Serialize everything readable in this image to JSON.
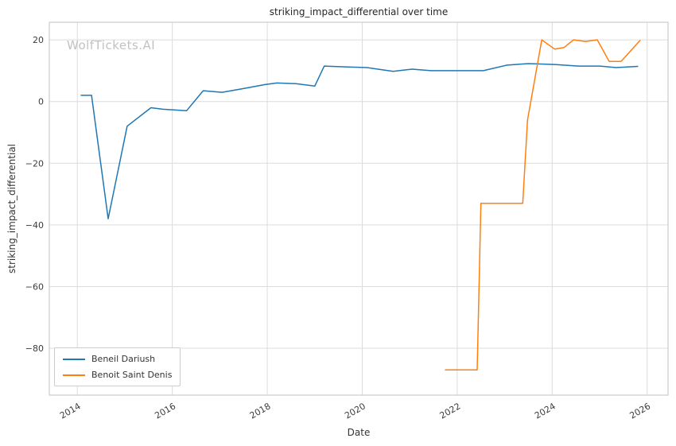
{
  "watermark": "WolfTickets.AI",
  "chart_data": {
    "type": "line",
    "title": "striking_impact_differential over time",
    "xlabel": "Date",
    "ylabel": "striking_impact_differential",
    "xlim": [
      2013.41,
      2026.44
    ],
    "ylim": [
      -95.2,
      25.7
    ],
    "grid": true,
    "legend_position": "lower left",
    "x_ticks": [
      {
        "v": 2014,
        "label": "2014"
      },
      {
        "v": 2016,
        "label": "2016"
      },
      {
        "v": 2018,
        "label": "2018"
      },
      {
        "v": 2020,
        "label": "2020"
      },
      {
        "v": 2022,
        "label": "2022"
      },
      {
        "v": 2024,
        "label": "2024"
      },
      {
        "v": 2026,
        "label": "2026"
      }
    ],
    "y_ticks": [
      {
        "v": 20,
        "label": "20"
      },
      {
        "v": 0,
        "label": "0"
      },
      {
        "v": -20,
        "label": "−20"
      },
      {
        "v": -40,
        "label": "−40"
      },
      {
        "v": -60,
        "label": "−60"
      },
      {
        "v": -80,
        "label": "−80"
      }
    ],
    "series": [
      {
        "name": "Beneil Dariush",
        "color": "#1f77b4",
        "points": [
          [
            2014.08,
            2
          ],
          [
            2014.3,
            2
          ],
          [
            2014.65,
            -38
          ],
          [
            2015.05,
            -8
          ],
          [
            2015.55,
            -2
          ],
          [
            2015.8,
            -2.5
          ],
          [
            2016.3,
            -3
          ],
          [
            2016.65,
            3.5
          ],
          [
            2017.05,
            3
          ],
          [
            2017.5,
            4.2
          ],
          [
            2017.95,
            5.5
          ],
          [
            2018.2,
            6
          ],
          [
            2018.6,
            5.8
          ],
          [
            2019.0,
            5
          ],
          [
            2019.2,
            11.5
          ],
          [
            2019.7,
            11.2
          ],
          [
            2020.1,
            11
          ],
          [
            2020.65,
            9.8
          ],
          [
            2021.05,
            10.5
          ],
          [
            2021.45,
            10
          ],
          [
            2021.95,
            10
          ],
          [
            2022.55,
            10
          ],
          [
            2023.05,
            11.8
          ],
          [
            2023.5,
            12.3
          ],
          [
            2024.05,
            12
          ],
          [
            2024.55,
            11.5
          ],
          [
            2025.0,
            11.5
          ],
          [
            2025.35,
            11
          ],
          [
            2025.8,
            11.4
          ]
        ]
      },
      {
        "name": "Benoit Saint Denis",
        "color": "#ff7f0e",
        "points": [
          [
            2021.75,
            -87
          ],
          [
            2022.1,
            -87
          ],
          [
            2022.42,
            -87
          ],
          [
            2022.5,
            -33
          ],
          [
            2022.75,
            -33
          ],
          [
            2023.38,
            -33
          ],
          [
            2023.48,
            -6
          ],
          [
            2023.78,
            20
          ],
          [
            2024.05,
            17
          ],
          [
            2024.25,
            17.5
          ],
          [
            2024.45,
            20
          ],
          [
            2024.7,
            19.5
          ],
          [
            2024.95,
            20
          ],
          [
            2025.2,
            13
          ],
          [
            2025.45,
            13
          ],
          [
            2025.85,
            19.8
          ]
        ]
      }
    ]
  }
}
